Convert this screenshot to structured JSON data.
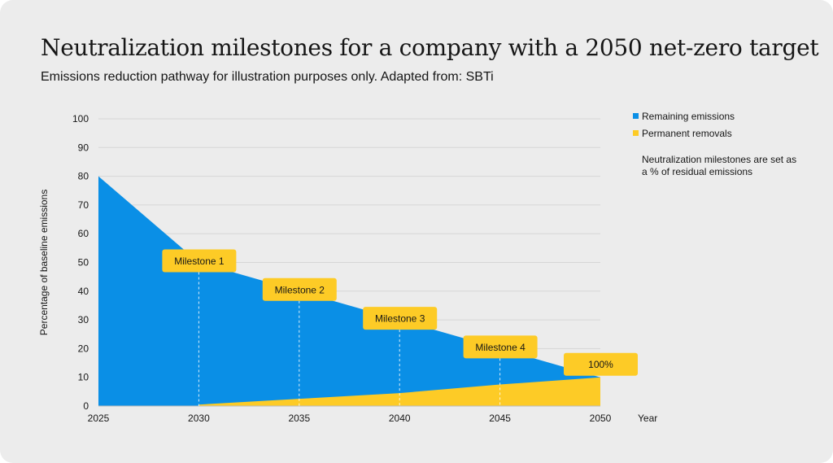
{
  "title": "Neutralization milestones for a company with a 2050 net-zero target",
  "subtitle": "Emissions reduction pathway for illustration purposes only. Adapted from: SBTi",
  "legend": {
    "items": [
      {
        "label": "Remaining emissions",
        "color": "#0a8fe6"
      },
      {
        "label": "Permanent removals",
        "color": "#fdcb26"
      }
    ],
    "note": "Neutralization milestones are set as a % of residual emissions"
  },
  "chart_data": {
    "type": "area",
    "title": "Neutralization milestones for a company with a 2050 net-zero target",
    "xlabel": "Year",
    "ylabel": "Percentage of baseline emissions",
    "xlim": [
      2025,
      2050
    ],
    "ylim": [
      0,
      100
    ],
    "x_ticks": [
      2025,
      2030,
      2035,
      2040,
      2045,
      2050
    ],
    "y_ticks": [
      0,
      10,
      20,
      30,
      40,
      50,
      60,
      70,
      80,
      90,
      100
    ],
    "grid": true,
    "series": [
      {
        "name": "Remaining emissions",
        "color": "#0a8fe6",
        "x": [
          2025,
          2030,
          2035,
          2040,
          2045,
          2050
        ],
        "values": [
          80,
          50,
          40,
          30,
          20,
          10
        ]
      },
      {
        "name": "Permanent removals",
        "color": "#fdcb26",
        "x": [
          2030,
          2035,
          2040,
          2045,
          2050
        ],
        "values": [
          0.5,
          2.5,
          4.5,
          7.5,
          10
        ]
      }
    ],
    "annotations": [
      {
        "label": "Milestone 1",
        "x": 2030,
        "y": 50
      },
      {
        "label": "Milestone 2",
        "x": 2035,
        "y": 40
      },
      {
        "label": "Milestone 3",
        "x": 2040,
        "y": 30
      },
      {
        "label": "Milestone 4",
        "x": 2045,
        "y": 20
      },
      {
        "label": "100%",
        "x": 2050,
        "y": 10
      }
    ]
  }
}
